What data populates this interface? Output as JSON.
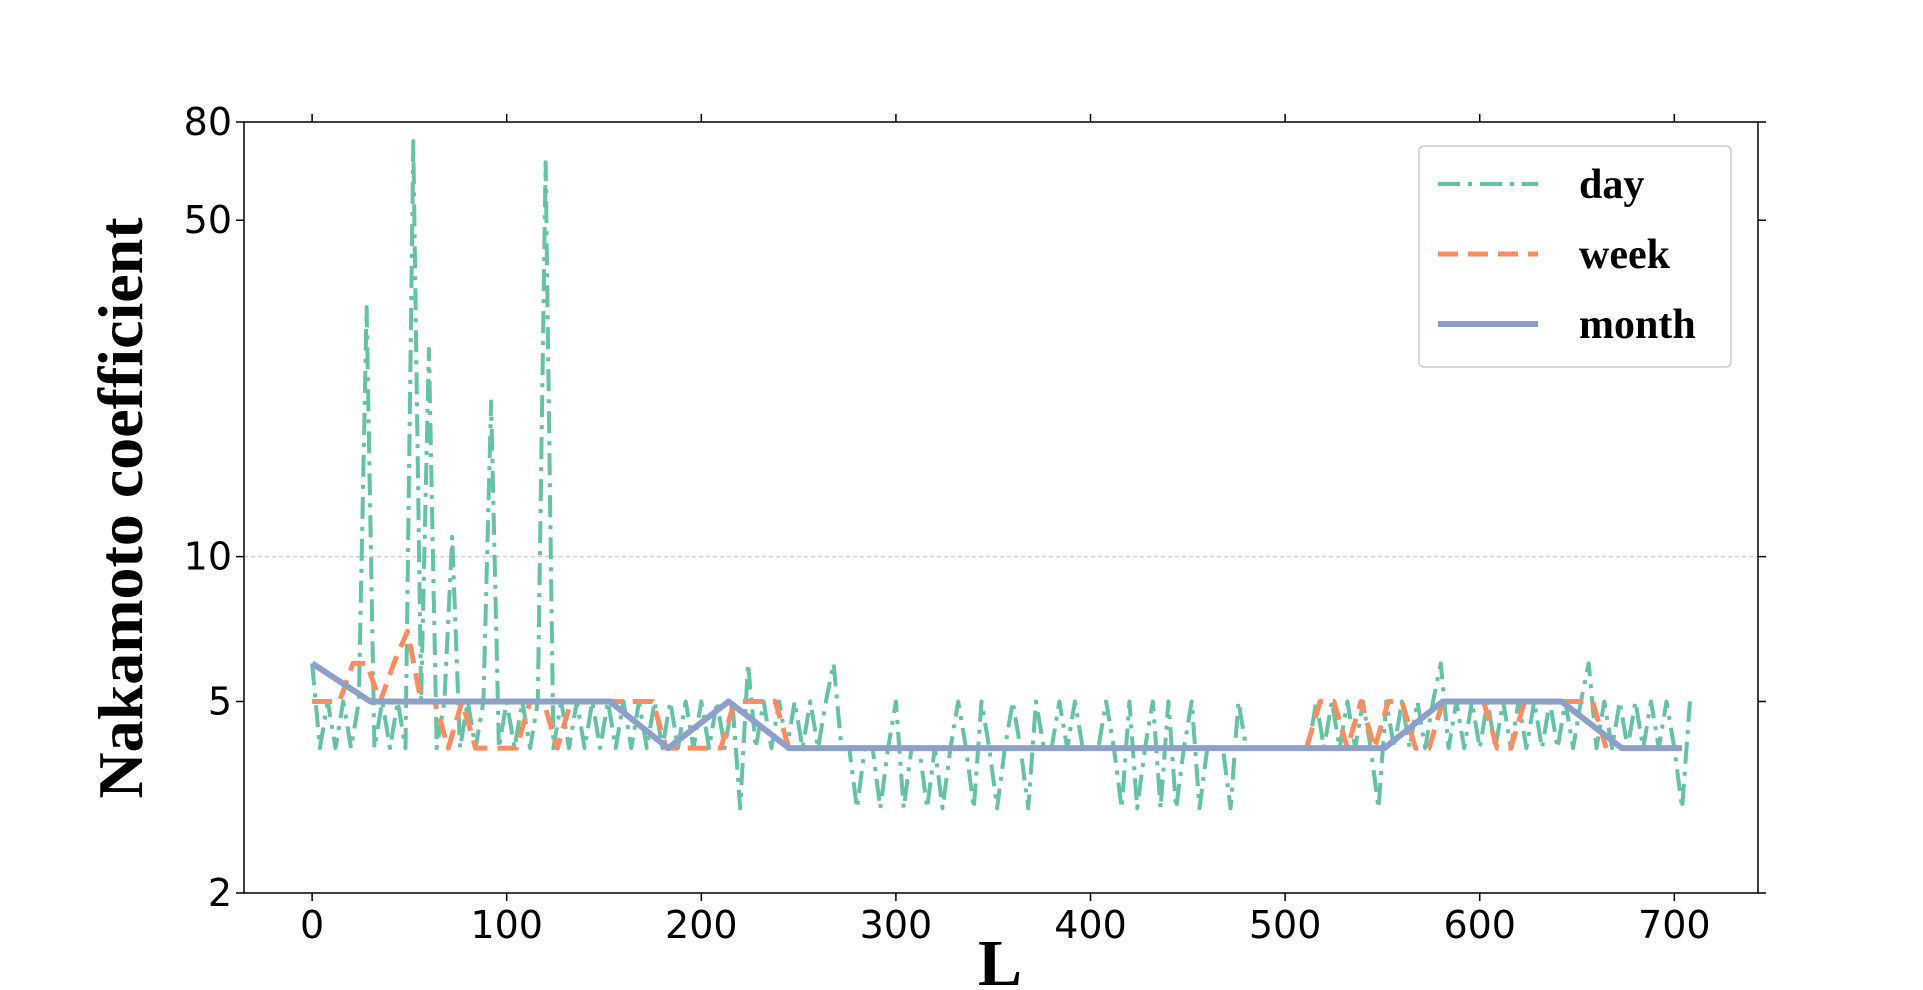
{
  "chart_data": {
    "type": "line",
    "x_label": "L",
    "y_label": "Nakamoto coefficient",
    "xlim": [
      -35,
      743
    ],
    "ylim": [
      2,
      80
    ],
    "log_y": true,
    "xticks": [
      0,
      100,
      200,
      300,
      400,
      500,
      600,
      700
    ],
    "yticks": [
      2,
      5,
      10,
      50,
      80
    ],
    "grid_y_values": [
      10
    ],
    "legend": "upper right",
    "series": [
      {
        "name": "day",
        "color": "#66c2a5",
        "style": "dashdot",
        "x": [
          0,
          4,
          8,
          12,
          16,
          20,
          24,
          28,
          32,
          36,
          40,
          44,
          48,
          52,
          56,
          60,
          64,
          68,
          72,
          76,
          80,
          84,
          88,
          92,
          96,
          100,
          104,
          108,
          112,
          116,
          120,
          124,
          128,
          132,
          136,
          140,
          144,
          148,
          152,
          156,
          160,
          164,
          168,
          172,
          176,
          180,
          184,
          188,
          192,
          196,
          200,
          204,
          208,
          212,
          216,
          220,
          224,
          228,
          232,
          236,
          240,
          244,
          248,
          252,
          256,
          260,
          264,
          268,
          272,
          276,
          280,
          284,
          288,
          292,
          296,
          300,
          304,
          308,
          312,
          316,
          320,
          324,
          328,
          332,
          336,
          340,
          344,
          348,
          352,
          356,
          360,
          364,
          368,
          372,
          376,
          380,
          384,
          388,
          392,
          396,
          400,
          404,
          408,
          412,
          416,
          420,
          424,
          428,
          432,
          436,
          440,
          444,
          448,
          452,
          456,
          460,
          464,
          468,
          472,
          476,
          480,
          484,
          488,
          492,
          496,
          500,
          504,
          508,
          512,
          516,
          520,
          524,
          528,
          532,
          536,
          540,
          544,
          548,
          552,
          556,
          560,
          564,
          568,
          572,
          576,
          580,
          584,
          588,
          592,
          596,
          600,
          604,
          608,
          612,
          616,
          620,
          624,
          628,
          632,
          636,
          640,
          644,
          648,
          652,
          656,
          660,
          664,
          668,
          672,
          676,
          680,
          684,
          688,
          692,
          696,
          700,
          704,
          708
        ],
        "values": [
          6,
          4,
          5,
          4,
          5,
          4,
          5,
          33,
          4,
          5,
          4,
          5,
          4,
          73,
          5,
          27,
          4,
          5,
          11,
          4,
          5,
          4,
          5,
          21,
          4,
          5,
          4,
          5,
          4,
          5,
          66,
          4,
          5,
          4,
          5,
          4,
          5,
          4,
          5,
          4,
          5,
          4,
          5,
          4,
          5,
          4,
          5,
          4,
          5,
          4,
          5,
          4,
          5,
          4,
          5,
          3,
          6,
          4,
          5,
          4,
          5,
          4,
          5,
          4,
          5,
          4,
          5,
          6,
          4,
          4,
          3,
          4,
          4,
          3,
          4,
          5,
          3,
          4,
          4,
          3,
          4,
          3,
          4,
          5,
          4,
          3,
          5,
          4,
          3,
          4,
          5,
          4,
          3,
          5,
          4,
          4,
          5,
          4,
          5,
          4,
          4,
          4,
          5,
          4,
          3,
          5,
          3,
          4,
          5,
          3,
          5,
          3,
          4,
          5,
          3,
          4,
          4,
          4,
          3,
          5,
          4,
          4,
          4,
          4,
          4,
          4,
          4,
          4,
          4,
          5,
          4,
          5,
          4,
          5,
          4,
          5,
          4,
          3,
          5,
          4,
          5,
          4,
          5,
          4,
          5,
          6,
          4,
          5,
          4,
          5,
          4,
          5,
          4,
          5,
          4,
          5,
          4,
          5,
          4,
          5,
          4,
          5,
          4,
          5,
          6,
          4,
          5,
          4,
          5,
          4,
          5,
          4,
          5,
          4,
          5,
          4,
          3,
          5
        ]
      },
      {
        "name": "week",
        "color": "#fc8d62",
        "style": "dashed",
        "x": [
          0,
          7,
          14,
          21,
          28,
          35,
          42,
          49,
          56,
          63,
          70,
          77,
          84,
          91,
          98,
          105,
          112,
          119,
          126,
          133,
          140,
          147,
          154,
          161,
          168,
          175,
          182,
          189,
          196,
          203,
          210,
          217,
          224,
          231,
          238,
          245,
          252,
          259,
          266,
          273,
          280,
          287,
          294,
          301,
          308,
          315,
          322,
          329,
          336,
          343,
          350,
          357,
          364,
          371,
          378,
          385,
          392,
          399,
          406,
          413,
          420,
          427,
          434,
          441,
          448,
          455,
          462,
          469,
          476,
          483,
          490,
          497,
          504,
          511,
          518,
          525,
          532,
          539,
          546,
          553,
          560,
          567,
          574,
          581,
          588,
          595,
          602,
          609,
          616,
          623,
          630,
          637,
          644,
          651,
          658,
          665
        ],
        "values": [
          5,
          5,
          5,
          6,
          6,
          5,
          6,
          7,
          5,
          5,
          4,
          5,
          4,
          4,
          4,
          4,
          5,
          5,
          4,
          5,
          5,
          5,
          5,
          5,
          5,
          5,
          4,
          4,
          4,
          4,
          4,
          5,
          5,
          5,
          5,
          4,
          4,
          4,
          4,
          4,
          4,
          4,
          4,
          4,
          4,
          4,
          4,
          4,
          4,
          4,
          4,
          4,
          4,
          4,
          4,
          4,
          4,
          4,
          4,
          4,
          4,
          4,
          4,
          4,
          4,
          4,
          4,
          4,
          4,
          4,
          4,
          4,
          4,
          4,
          5,
          5,
          4,
          5,
          4,
          5,
          5,
          4,
          4,
          5,
          5,
          5,
          5,
          4,
          4,
          5,
          5,
          5,
          5,
          5,
          5,
          4
        ]
      },
      {
        "name": "month",
        "color": "#8da0cb",
        "style": "solid",
        "x": [
          0,
          30,
          61,
          91,
          122,
          153,
          183,
          214,
          245,
          275,
          306,
          336,
          367,
          398,
          428,
          459,
          489,
          520,
          551,
          581,
          612,
          642,
          673,
          704
        ],
        "values": [
          6,
          5,
          5,
          5,
          5,
          5,
          4,
          5,
          4,
          4,
          4,
          4,
          4,
          4,
          4,
          4,
          4,
          4,
          4,
          5,
          5,
          5,
          4,
          4
        ]
      }
    ]
  }
}
